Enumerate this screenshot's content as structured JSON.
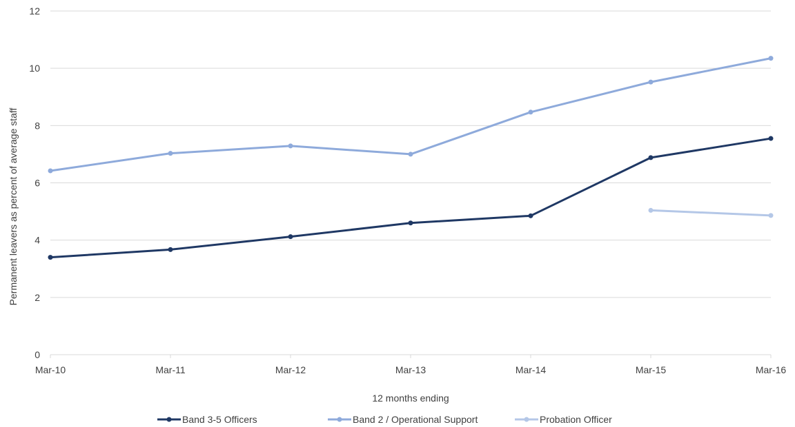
{
  "chart_data": {
    "type": "line",
    "categories": [
      "Mar-10",
      "Mar-11",
      "Mar-12",
      "Mar-13",
      "Mar-14",
      "Mar-15",
      "Mar-16"
    ],
    "xlabel": "12 months ending",
    "ylabel": "Permanent leavers as percent of average staff",
    "ylim": [
      0,
      12
    ],
    "yticks": [
      "0",
      "2",
      "4",
      "6",
      "8",
      "10",
      "12"
    ],
    "grid": true,
    "legend_position": "bottom",
    "series": [
      {
        "name": "Band 3-5 Officers",
        "color": "#1f3864",
        "values": [
          3.4,
          3.67,
          4.12,
          4.6,
          4.85,
          6.88,
          7.55
        ]
      },
      {
        "name": "Band 2 / Operational Support",
        "color": "#8eaadb",
        "values": [
          6.42,
          7.03,
          7.29,
          7.0,
          8.47,
          9.52,
          10.35
        ]
      },
      {
        "name": "Probation Officer",
        "color": "#b4c7e7",
        "values": [
          null,
          null,
          null,
          null,
          null,
          5.04,
          4.86
        ]
      }
    ]
  }
}
